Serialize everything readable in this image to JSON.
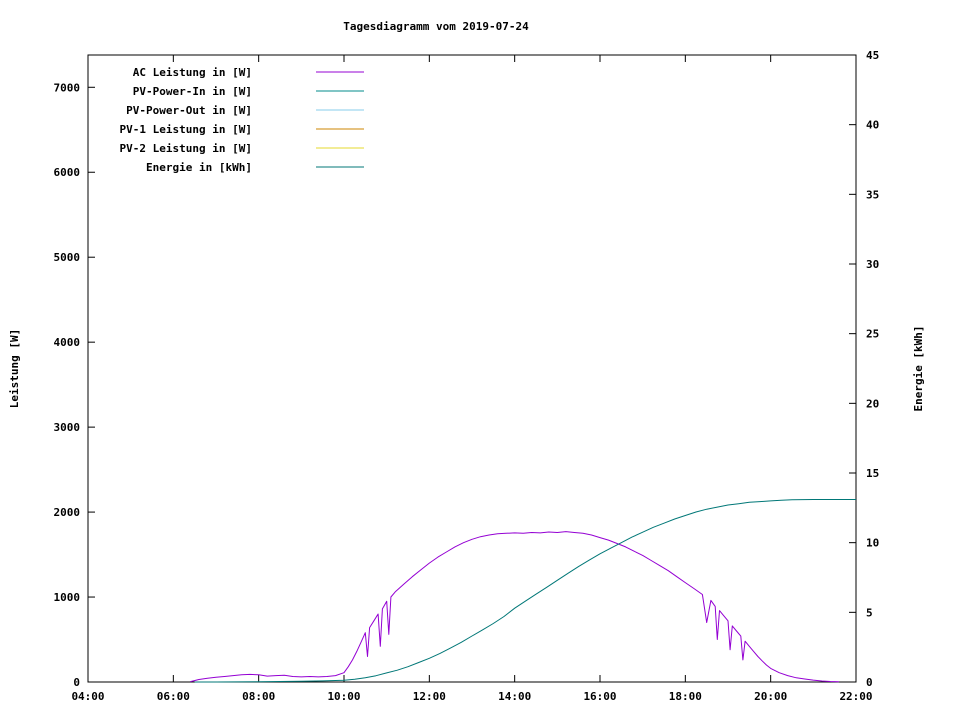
{
  "title": "Tagesdiagramm vom 2019-07-24",
  "chart_data": {
    "type": "line",
    "title": "Tagesdiagramm vom 2019-07-24",
    "x_axis": {
      "min": 4,
      "max": 22,
      "tick_values": [
        4,
        6,
        8,
        10,
        12,
        14,
        16,
        18,
        20,
        22
      ],
      "tick_labels": [
        "04:00",
        "06:00",
        "08:00",
        "10:00",
        "12:00",
        "14:00",
        "16:00",
        "18:00",
        "20:00",
        "22:00"
      ]
    },
    "y_left": {
      "label": "Leistung [W]",
      "min": 0,
      "max": 7380,
      "ticks": [
        0,
        1000,
        2000,
        3000,
        4000,
        5000,
        6000,
        7000
      ]
    },
    "y_right": {
      "label": "Energie [kWh]",
      "min": 0,
      "max": 45,
      "ticks": [
        0,
        5,
        10,
        15,
        20,
        25,
        30,
        35,
        40,
        45
      ]
    },
    "grid": false,
    "legend_position": "top-left-inside",
    "series": [
      {
        "name": "AC Leistung in [W]",
        "color": "#9400d3",
        "axis": "left",
        "x": [
          6.4,
          6.6,
          6.8,
          7.0,
          7.2,
          7.4,
          7.6,
          7.8,
          8.0,
          8.2,
          8.4,
          8.6,
          8.8,
          9.0,
          9.2,
          9.4,
          9.6,
          9.8,
          10.0,
          10.1,
          10.2,
          10.3,
          10.4,
          10.5,
          10.55,
          10.6,
          10.7,
          10.8,
          10.85,
          10.9,
          11.0,
          11.05,
          11.1,
          11.2,
          11.4,
          11.6,
          11.8,
          12.0,
          12.2,
          12.4,
          12.6,
          12.8,
          13.0,
          13.2,
          13.4,
          13.6,
          13.8,
          14.0,
          14.2,
          14.4,
          14.6,
          14.8,
          15.0,
          15.2,
          15.4,
          15.6,
          15.8,
          16.0,
          16.2,
          16.4,
          16.6,
          16.8,
          17.0,
          17.2,
          17.4,
          17.6,
          17.8,
          18.0,
          18.2,
          18.4,
          18.5,
          18.6,
          18.7,
          18.75,
          18.8,
          18.9,
          19.0,
          19.05,
          19.1,
          19.2,
          19.3,
          19.35,
          19.4,
          19.5,
          19.6,
          19.7,
          19.8,
          19.9,
          20.0,
          20.2,
          20.4,
          20.6,
          20.8,
          21.0,
          21.2,
          21.4,
          21.6
        ],
        "y": [
          5,
          30,
          45,
          55,
          65,
          75,
          85,
          90,
          85,
          70,
          75,
          80,
          65,
          60,
          65,
          60,
          65,
          75,
          110,
          180,
          260,
          360,
          470,
          580,
          300,
          640,
          720,
          800,
          420,
          860,
          950,
          560,
          1000,
          1060,
          1150,
          1240,
          1320,
          1400,
          1470,
          1530,
          1590,
          1640,
          1680,
          1710,
          1730,
          1745,
          1750,
          1755,
          1750,
          1760,
          1755,
          1765,
          1760,
          1770,
          1760,
          1750,
          1730,
          1700,
          1670,
          1630,
          1590,
          1540,
          1490,
          1430,
          1370,
          1310,
          1240,
          1170,
          1100,
          1030,
          700,
          960,
          890,
          500,
          840,
          780,
          720,
          380,
          660,
          600,
          540,
          260,
          480,
          420,
          360,
          300,
          250,
          200,
          160,
          110,
          75,
          50,
          35,
          22,
          12,
          6,
          2
        ]
      },
      {
        "name": "PV-Power-In in [W]",
        "color": "#008b8b",
        "axis": "left",
        "x": [],
        "y": []
      },
      {
        "name": "PV-Power-Out in [W]",
        "color": "#87ceeb",
        "axis": "left",
        "x": [],
        "y": []
      },
      {
        "name": "PV-1 Leistung in [W]",
        "color": "#cc8400",
        "axis": "left",
        "x": [],
        "y": []
      },
      {
        "name": "PV-2 Leistung in [W]",
        "color": "#e6d92e",
        "axis": "left",
        "x": [],
        "y": []
      },
      {
        "name": "Energie in [kWh]",
        "color": "#007777",
        "axis": "right",
        "x": [
          6.5,
          7,
          8,
          9,
          9.5,
          10,
          10.25,
          10.5,
          10.75,
          11,
          11.25,
          11.5,
          11.75,
          12,
          12.25,
          12.5,
          12.75,
          13,
          13.25,
          13.5,
          13.75,
          14,
          14.25,
          14.5,
          14.75,
          15,
          15.25,
          15.5,
          15.75,
          16,
          16.25,
          16.5,
          16.75,
          17,
          17.25,
          17.5,
          17.75,
          18,
          18.25,
          18.5,
          18.75,
          19,
          19.25,
          19.5,
          19.75,
          20,
          20.25,
          20.5,
          21,
          21.5,
          22
        ],
        "y": [
          0,
          0,
          0.02,
          0.05,
          0.08,
          0.12,
          0.2,
          0.3,
          0.45,
          0.65,
          0.85,
          1.1,
          1.4,
          1.7,
          2.05,
          2.45,
          2.85,
          3.3,
          3.75,
          4.2,
          4.7,
          5.3,
          5.8,
          6.3,
          6.8,
          7.3,
          7.8,
          8.3,
          8.75,
          9.2,
          9.6,
          10.0,
          10.4,
          10.75,
          11.1,
          11.4,
          11.7,
          11.95,
          12.2,
          12.4,
          12.55,
          12.7,
          12.8,
          12.9,
          12.95,
          13.0,
          13.05,
          13.08,
          13.1,
          13.1,
          13.1
        ]
      }
    ]
  }
}
